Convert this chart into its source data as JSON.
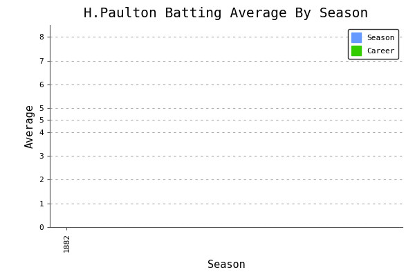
{
  "title": "H.Paulton Batting Average By Season",
  "xlabel": "Season",
  "ylabel": "Average",
  "ylim": [
    0,
    8.5
  ],
  "xlim_start": 1882,
  "xlim_end": 1892,
  "xtick_labels": [
    "1882"
  ],
  "xtick_positions": [
    1882
  ],
  "ytick_positions": [
    0,
    1,
    2,
    3,
    4,
    4.5,
    5,
    6,
    7,
    8
  ],
  "ytick_labels": [
    "0",
    "1",
    "2",
    "3",
    "4",
    "5",
    "5",
    "6",
    "7",
    "8"
  ],
  "season_color": "#6699FF",
  "career_color": "#33CC00",
  "plot_bg_color": "#FFFFFF",
  "fig_bg_color": "#FFFFFF",
  "grid_color": "#AAAAAA",
  "title_fontsize": 14,
  "label_fontsize": 11,
  "tick_fontsize": 8,
  "legend_labels": [
    "Season",
    "Career"
  ],
  "font_family": "monospace"
}
